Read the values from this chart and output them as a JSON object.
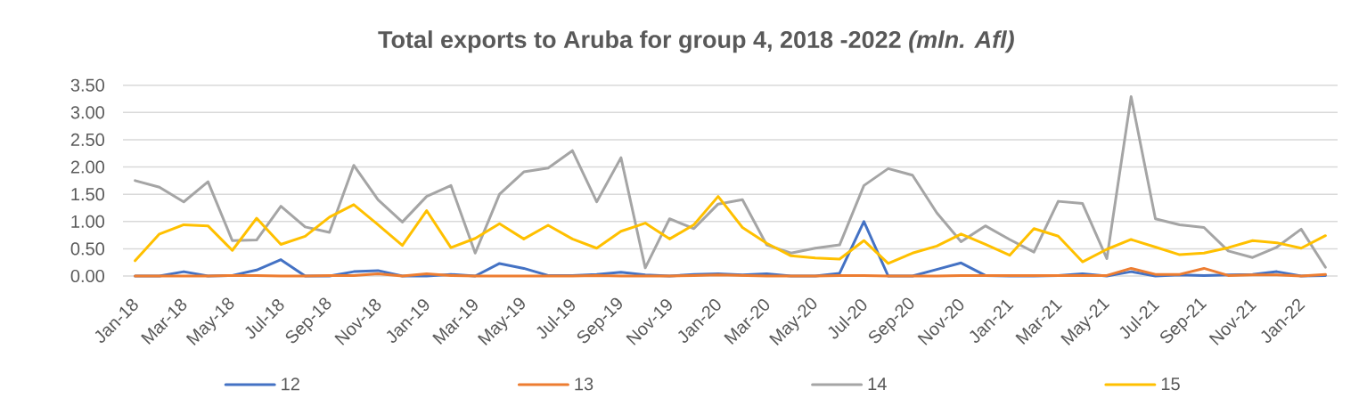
{
  "chart_data": {
    "type": "line",
    "title": "Total exports to Aruba for group 4, 2018 -2022 *(mln. Afl)*",
    "categories": [
      "Jan-18",
      null,
      "Mar-18",
      null,
      "May-18",
      null,
      "Jul-18",
      null,
      "Sep-18",
      null,
      "Nov-18",
      null,
      "Jan-19",
      null,
      "Mar-19",
      null,
      "May-19",
      null,
      "Jul-19",
      null,
      "Sep-19",
      null,
      "Nov-19",
      null,
      "Jan-20",
      null,
      "Mar-20",
      null,
      "May-20",
      null,
      "Jul-20",
      null,
      "Sep-20",
      null,
      "Nov-20",
      null,
      "Jan-21",
      null,
      "Mar-21",
      null,
      "May-21",
      null,
      "Jul-21",
      null,
      "Sep-21",
      null,
      "Nov-21",
      null,
      "Jan-22",
      null
    ],
    "series": [
      {
        "name": "12",
        "color": "#4472c4",
        "values": [
          0,
          0,
          0.08,
          0,
          0.01,
          0.11,
          0.3,
          0,
          0,
          0.08,
          0.1,
          0,
          0,
          0.03,
          0,
          0.23,
          0.14,
          0.01,
          0.01,
          0.03,
          0.07,
          0.02,
          0,
          0.03,
          0.04,
          0.02,
          0.04,
          0,
          0,
          0.05,
          1.0,
          0,
          0,
          0.12,
          0.24,
          0.01,
          0,
          0,
          0.01,
          0.04,
          0,
          0.08,
          0,
          0.02,
          0.01,
          0.02,
          0.03,
          0.08,
          0,
          0.01
        ]
      },
      {
        "name": "13",
        "color": "#ed7d31",
        "values": [
          0,
          0,
          0,
          0,
          0.01,
          0.01,
          0,
          0,
          0.01,
          0.01,
          0.04,
          0,
          0.04,
          0.01,
          0,
          0,
          0,
          0,
          0,
          0.01,
          0,
          0,
          0,
          0.01,
          0.02,
          0.01,
          0,
          0,
          0,
          0.01,
          0.01,
          0,
          0,
          0,
          0.01,
          0.01,
          0.01,
          0.01,
          0.01,
          0.01,
          0.01,
          0.14,
          0.03,
          0.03,
          0.14,
          0.01,
          0.02,
          0.02,
          0,
          0.03
        ]
      },
      {
        "name": "14",
        "color": "#a5a5a5",
        "values": [
          1.75,
          1.63,
          1.36,
          1.73,
          0.65,
          0.66,
          1.28,
          0.9,
          0.8,
          2.03,
          1.4,
          0.99,
          1.46,
          1.66,
          0.42,
          1.5,
          1.91,
          1.98,
          2.3,
          1.36,
          2.17,
          0.15,
          1.05,
          0.87,
          1.32,
          1.4,
          0.57,
          0.42,
          0.51,
          0.57,
          1.66,
          1.97,
          1.85,
          1.16,
          0.63,
          0.92,
          0.67,
          0.44,
          1.37,
          1.33,
          0.32,
          3.29,
          1.05,
          0.94,
          0.89,
          0.46,
          0.34,
          0.53,
          0.86,
          0.16
        ]
      },
      {
        "name": "15",
        "color": "#ffc000",
        "values": [
          0.28,
          0.77,
          0.94,
          0.92,
          0.47,
          1.06,
          0.58,
          0.73,
          1.08,
          1.31,
          0.94,
          0.56,
          1.2,
          0.52,
          0.69,
          0.96,
          0.68,
          0.93,
          0.68,
          0.51,
          0.82,
          0.97,
          0.68,
          0.94,
          1.46,
          0.89,
          0.6,
          0.37,
          0.33,
          0.31,
          0.65,
          0.23,
          0.42,
          0.55,
          0.77,
          0.58,
          0.38,
          0.87,
          0.73,
          0.26,
          0.49,
          0.67,
          0.53,
          0.39,
          0.42,
          0.52,
          0.65,
          0.61,
          0.51,
          0.74
        ]
      }
    ],
    "ylim": [
      0,
      3.5
    ],
    "yticks": [
      {
        "value": 0,
        "label": "0.00"
      },
      {
        "value": 0.5,
        "label": "0.50"
      },
      {
        "value": 1,
        "label": "1.00"
      },
      {
        "value": 1.5,
        "label": "1.50"
      },
      {
        "value": 2,
        "label": "2.00"
      },
      {
        "value": 2.5,
        "label": "2.50"
      },
      {
        "value": 3,
        "label": "3.00"
      },
      {
        "value": 3.5,
        "label": "3.50"
      }
    ],
    "grid": "y",
    "legend": "bottom"
  }
}
